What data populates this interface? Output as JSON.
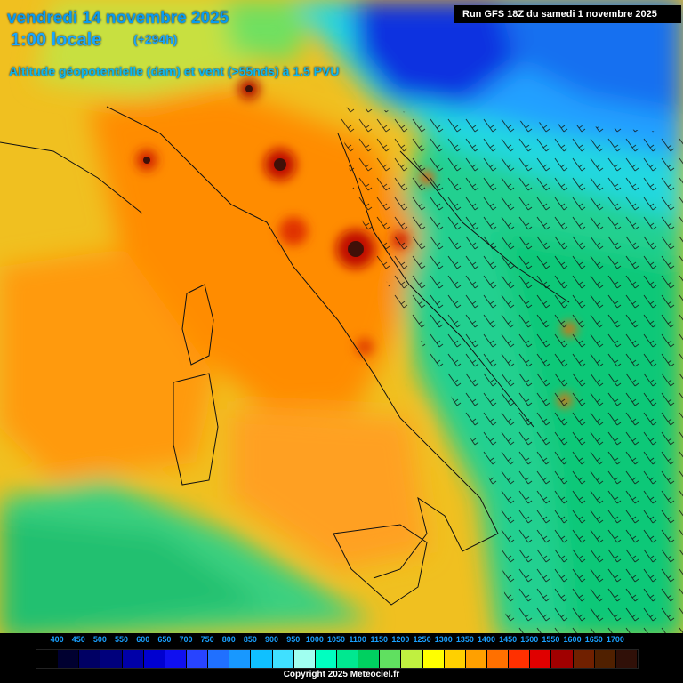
{
  "header": {
    "date": "vendredi 14 novembre 2025",
    "local_time": "1:00 locale",
    "lead": "(+294h)",
    "parameter": "Altitude géopotentielle (dam) et vent (>55nds) à 1.5 PVU",
    "run": "Run GFS 18Z du samedi 1 novembre 2025"
  },
  "legend": {
    "labels": [
      "400",
      "450",
      "500",
      "550",
      "600",
      "650",
      "700",
      "750",
      "800",
      "850",
      "900",
      "950",
      "1000",
      "1050",
      "1100",
      "1150",
      "1200",
      "1250",
      "1300",
      "1350",
      "1400",
      "1450",
      "1500",
      "1550",
      "1600",
      "1650",
      "1700"
    ],
    "colors": [
      "#000000",
      "#000030",
      "#000064",
      "#00007c",
      "#0000a8",
      "#0000d0",
      "#1010f0",
      "#2844ff",
      "#2070ff",
      "#1898ff",
      "#10c0ff",
      "#40e0ff",
      "#a0fff0",
      "#00ffc0",
      "#00e890",
      "#00d060",
      "#60e060",
      "#c0f040",
      "#ffff00",
      "#ffd000",
      "#ffa000",
      "#ff7000",
      "#ff3000",
      "#e00000",
      "#a00000",
      "#702000",
      "#502000",
      "#301008"
    ]
  },
  "copyright": "Copyright 2025 Meteociel.fr"
}
